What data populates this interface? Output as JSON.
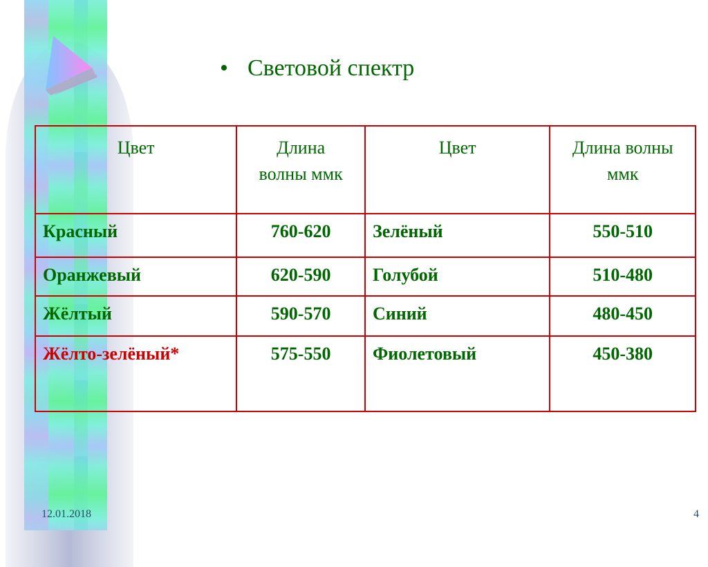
{
  "slide": {
    "title": "Световой спектр",
    "date": "12.01.2018",
    "page_number": "4"
  },
  "colors": {
    "text": "#006600",
    "border": "#cc0000",
    "highlight": "#cc0000"
  },
  "table": {
    "headers": [
      "Цвет",
      "Длина волны ммк",
      "Цвет",
      "Длина волны ммк"
    ],
    "rows": [
      [
        "Красный",
        "760-620",
        "Зелёный",
        "550-510"
      ],
      [
        "Оранжевый",
        "620-590",
        "Голубой",
        "510-480"
      ],
      [
        "Жёлтый",
        "590-570",
        "Синий",
        "480-450"
      ],
      [
        "Жёлто-зелёный*",
        "575-550",
        "Фиолетовый",
        "450-380"
      ]
    ]
  }
}
